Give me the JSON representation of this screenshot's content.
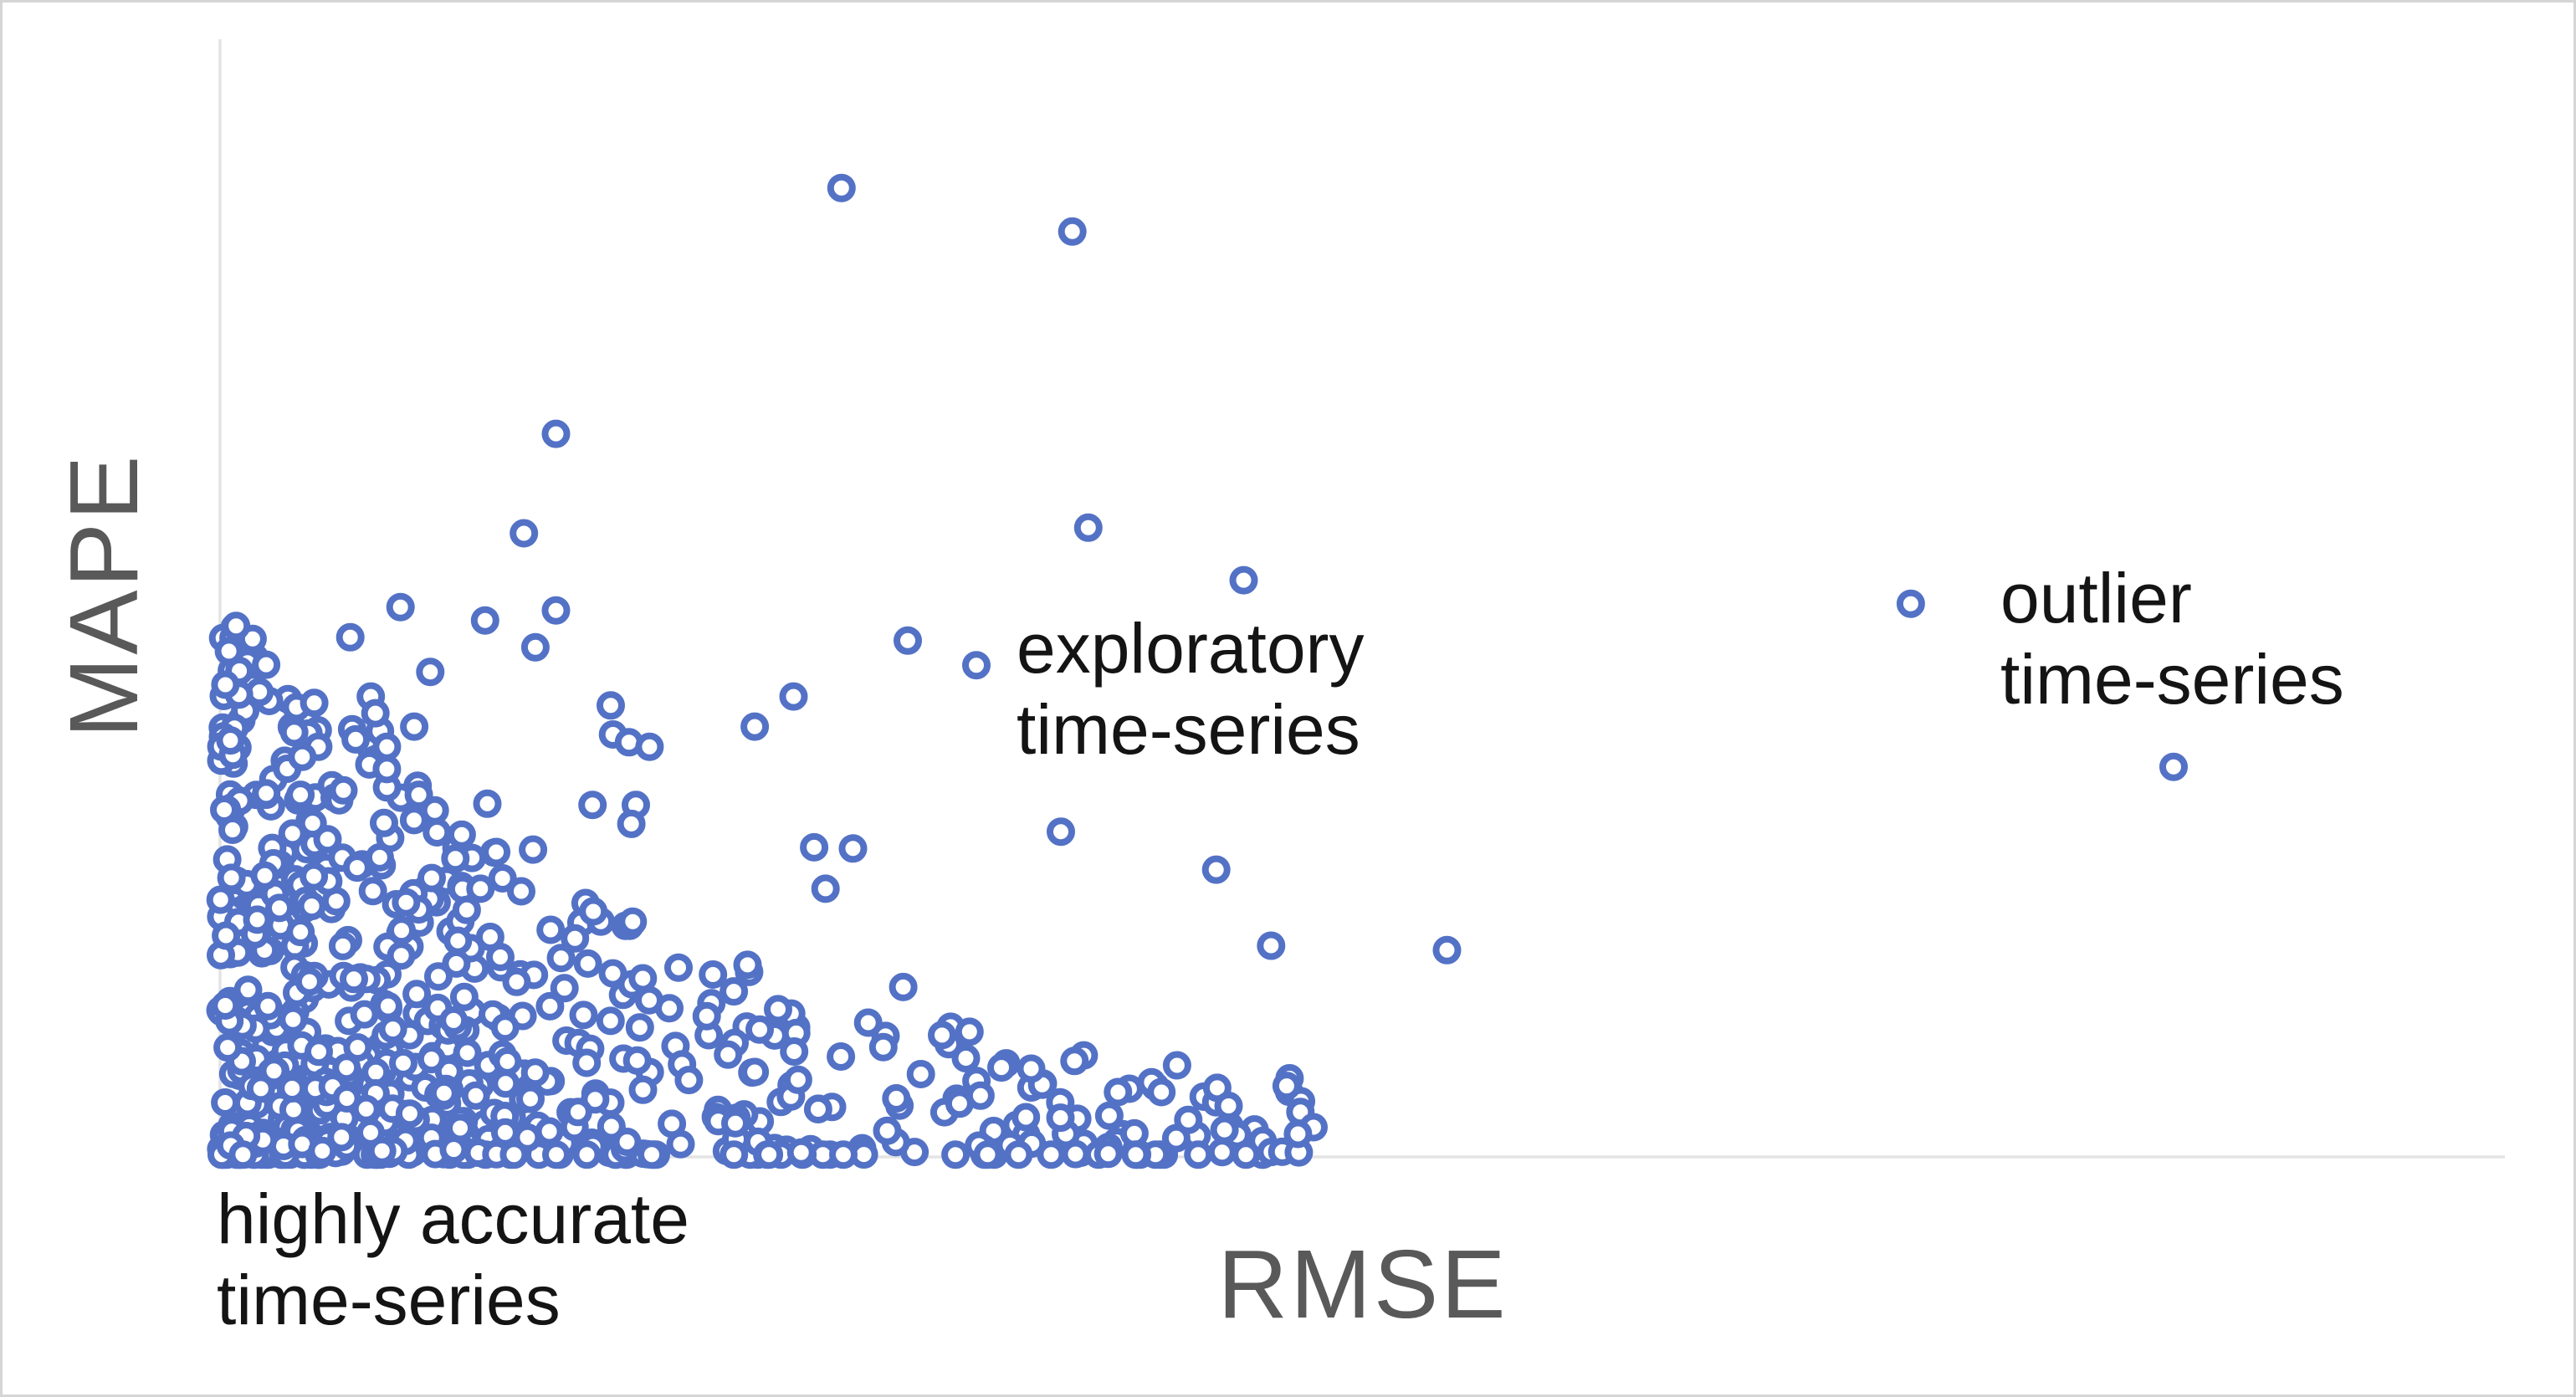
{
  "page": {
    "background": "#ffffff",
    "border_color": "#d5d5d5"
  },
  "chart_data": {
    "type": "scatter",
    "title": "",
    "xlabel": "RMSE",
    "ylabel": "MAPE",
    "grid": false,
    "axis_ticks": "none",
    "legend": "none",
    "colors": {
      "axis_line": "#e4e4e4",
      "axis_label": "#595959",
      "annotation_text": "#141414",
      "marker_stroke": "#5372c6",
      "marker_fill": "#ffffff"
    },
    "marker": {
      "shape": "open-circle",
      "radius_px": 13,
      "stroke_width_px": 8
    },
    "x_axis": {
      "label": "RMSE",
      "range_pct": [
        0,
        100
      ]
    },
    "y_axis": {
      "label": "MAPE",
      "range_pct": [
        0,
        100
      ]
    },
    "annotations": [
      {
        "id": "highly-accurate",
        "line1": "highly accurate",
        "line2": "time-series",
        "anchor_pct": [
          0,
          -5
        ]
      },
      {
        "id": "exploratory",
        "line1": "exploratory",
        "line2": "time-series",
        "anchor_pct": [
          34.7,
          43
        ]
      },
      {
        "id": "outlier",
        "line1": "outlier",
        "line2": "time-series",
        "anchor_pct": [
          77.8,
          51
        ]
      }
    ],
    "labeled_points_pct": {
      "outlier_time_series": [
        [
          74.0,
          49.5
        ],
        [
          85.5,
          34.9
        ]
      ],
      "exploratory_time_series": [
        [
          30.1,
          46.2
        ],
        [
          33.1,
          44.0
        ]
      ]
    },
    "points_pct": [
      [
        27.2,
        86.7
      ],
      [
        37.3,
        82.8
      ],
      [
        14.7,
        64.7
      ],
      [
        13.3,
        55.8
      ],
      [
        38.0,
        56.3
      ],
      [
        44.8,
        51.6
      ],
      [
        74.0,
        49.5
      ],
      [
        85.5,
        34.9
      ],
      [
        30.1,
        46.2
      ],
      [
        33.1,
        44.0
      ],
      [
        7.9,
        49.2
      ],
      [
        5.7,
        46.5
      ],
      [
        11.6,
        48.0
      ],
      [
        14.7,
        48.9
      ],
      [
        13.8,
        45.6
      ],
      [
        9.2,
        43.4
      ],
      [
        6.6,
        41.2
      ],
      [
        4.3,
        36.7
      ],
      [
        7.0,
        38.1
      ],
      [
        3.6,
        35.8
      ],
      [
        7.3,
        34.7
      ],
      [
        5.4,
        32.8
      ],
      [
        8.7,
        32.4
      ],
      [
        8.5,
        38.5
      ],
      [
        6.8,
        39.7
      ],
      [
        7.3,
        36.7
      ],
      [
        17.2,
        37.8
      ],
      [
        17.9,
        37.1
      ],
      [
        17.1,
        40.4
      ],
      [
        18.8,
        36.7
      ],
      [
        23.4,
        38.5
      ],
      [
        25.1,
        41.2
      ],
      [
        26.0,
        27.7
      ],
      [
        27.7,
        27.6
      ],
      [
        26.5,
        24.0
      ],
      [
        36.8,
        29.1
      ],
      [
        43.6,
        25.7
      ],
      [
        46.0,
        18.9
      ],
      [
        53.7,
        18.5
      ],
      [
        11.7,
        31.6
      ],
      [
        16.3,
        31.5
      ],
      [
        18.2,
        31.5
      ],
      [
        18.0,
        29.8
      ],
      [
        11.4,
        24.0
      ],
      [
        13.7,
        27.5
      ],
      [
        10.3,
        26.7
      ],
      [
        9.4,
        31.0
      ],
      [
        10.8,
        22.1
      ],
      [
        39.8,
        6.1
      ],
      [
        41.2,
        5.8
      ],
      [
        39.3,
        5.8
      ],
      [
        32.8,
        11.2
      ],
      [
        34.2,
        8.0
      ],
      [
        35.5,
        7.9
      ],
      [
        23.4,
        7.6
      ],
      [
        25.3,
        6.9
      ],
      [
        29.9,
        15.2
      ],
      [
        31.6,
        10.9
      ],
      [
        21.3,
        12.6
      ],
      [
        16.1,
        17.3
      ]
    ],
    "dense_cluster": {
      "description": "heavily overplotted mass of time-series near the origin, thinning up and to the right",
      "count": 700,
      "seed": 20240613,
      "mix_core": 0.58,
      "x_mean_core": 7.0,
      "x_pow_band": 1.7,
      "x_max": 48,
      "env_base": 48,
      "env_decay": 19,
      "env_floor": 3,
      "y_pow_core": 1.9,
      "y_pow_band": 2.3,
      "y_min": 0.2
    }
  }
}
